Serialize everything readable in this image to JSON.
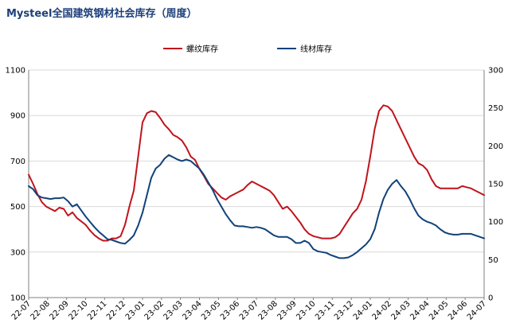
{
  "chart_data": {
    "type": "line",
    "title": "Mysteel全国建筑钢材社会库存（周度）",
    "x_tick_labels": [
      "22-07",
      "22-08",
      "22-09",
      "22-10",
      "22-11",
      "22-12",
      "23-01",
      "23-02",
      "23-03",
      "23-04",
      "23-05",
      "23-06",
      "23-07",
      "23-08",
      "23-09",
      "23-10",
      "23-11",
      "23-12",
      "24-01",
      "24-02",
      "24-03",
      "24-04",
      "24-05",
      "24-06",
      "24-07"
    ],
    "y_left": {
      "ylim": [
        100,
        1100
      ],
      "ticks": [
        100,
        300,
        500,
        700,
        900,
        1100
      ]
    },
    "y_right": {
      "ylim": [
        0,
        300
      ],
      "ticks": [
        0,
        50,
        100,
        150,
        200,
        250,
        300
      ]
    },
    "grid": "horizontal",
    "legend_position": "top-center",
    "series": [
      {
        "name": "螺纹库存",
        "axis": "left",
        "color": "#c0141c",
        "values": [
          640,
          600,
          555,
          520,
          500,
          490,
          480,
          495,
          490,
          460,
          475,
          450,
          435,
          420,
          395,
          375,
          360,
          350,
          350,
          360,
          360,
          370,
          420,
          500,
          570,
          720,
          870,
          910,
          920,
          915,
          890,
          860,
          840,
          815,
          805,
          790,
          760,
          720,
          705,
          665,
          635,
          600,
          580,
          560,
          540,
          530,
          545,
          555,
          565,
          575,
          595,
          610,
          600,
          590,
          580,
          570,
          550,
          520,
          490,
          500,
          480,
          455,
          430,
          400,
          380,
          370,
          365,
          360,
          360,
          360,
          365,
          380,
          410,
          440,
          470,
          490,
          530,
          610,
          720,
          840,
          920,
          945,
          940,
          920,
          880,
          840,
          800,
          760,
          720,
          690,
          680,
          660,
          620,
          590,
          580,
          580,
          580,
          580,
          580,
          590,
          585,
          580,
          570,
          560,
          550
        ]
      },
      {
        "name": "线材库存",
        "axis": "right",
        "color": "#10427a",
        "values": [
          147,
          143,
          135,
          132,
          131,
          130,
          131,
          131,
          132,
          127,
          120,
          123,
          115,
          107,
          100,
          93,
          87,
          82,
          77,
          76,
          74,
          72,
          71,
          76,
          82,
          95,
          112,
          135,
          158,
          170,
          175,
          183,
          188,
          185,
          182,
          180,
          182,
          180,
          175,
          170,
          162,
          152,
          142,
          130,
          120,
          110,
          102,
          95,
          94,
          94,
          93,
          92,
          93,
          92,
          90,
          86,
          82,
          80,
          80,
          80,
          77,
          72,
          72,
          75,
          72,
          64,
          61,
          60,
          59,
          56,
          54,
          52,
          52,
          53,
          56,
          60,
          65,
          70,
          77,
          90,
          112,
          130,
          142,
          150,
          155,
          147,
          140,
          130,
          118,
          108,
          103,
          100,
          98,
          95,
          90,
          86,
          84,
          83,
          83,
          84,
          84,
          84,
          82,
          80,
          78
        ]
      }
    ]
  }
}
